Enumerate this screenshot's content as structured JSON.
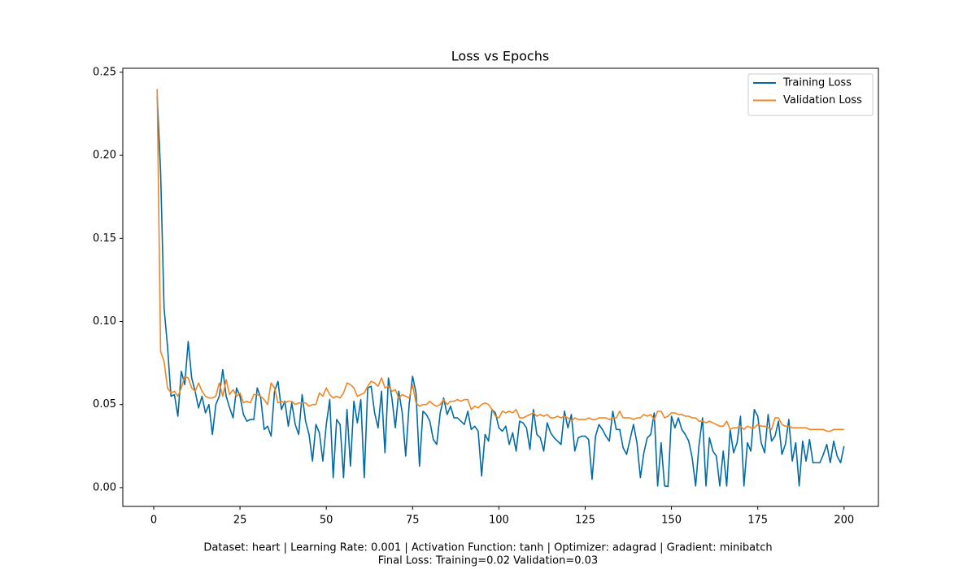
{
  "chart_data": {
    "type": "line",
    "title": "Loss vs Epochs",
    "footnote": [
      "Dataset: heart | Learning Rate: 0.001 | Activation Function: tanh | Optimizer: adagrad | Gradient: minibatch",
      "Final Loss: Training=0.02 Validation=0.03"
    ],
    "legend": "upper right",
    "grid": false,
    "x": [
      1,
      2,
      3,
      4,
      5,
      6,
      7,
      8,
      9,
      10,
      11,
      12,
      13,
      14,
      15,
      16,
      17,
      18,
      19,
      20,
      21,
      22,
      23,
      24,
      25,
      26,
      27,
      28,
      29,
      30,
      31,
      32,
      33,
      34,
      35,
      36,
      37,
      38,
      39,
      40,
      41,
      42,
      43,
      44,
      45,
      46,
      47,
      48,
      49,
      50,
      51,
      52,
      53,
      54,
      55,
      56,
      57,
      58,
      59,
      60,
      61,
      62,
      63,
      64,
      65,
      66,
      67,
      68,
      69,
      70,
      71,
      72,
      73,
      74,
      75,
      76,
      77,
      78,
      79,
      80,
      81,
      82,
      83,
      84,
      85,
      86,
      87,
      88,
      89,
      90,
      91,
      92,
      93,
      94,
      95,
      96,
      97,
      98,
      99,
      100,
      101,
      102,
      103,
      104,
      105,
      106,
      107,
      108,
      109,
      110,
      111,
      112,
      113,
      114,
      115,
      116,
      117,
      118,
      119,
      120,
      121,
      122,
      123,
      124,
      125,
      126,
      127,
      128,
      129,
      130,
      131,
      132,
      133,
      134,
      135,
      136,
      137,
      138,
      139,
      140,
      141,
      142,
      143,
      144,
      145,
      146,
      147,
      148,
      149,
      150,
      151,
      152,
      153,
      154,
      155,
      156,
      157,
      158,
      159,
      160,
      161,
      162,
      163,
      164,
      165,
      166,
      167,
      168,
      169,
      170,
      171,
      172,
      173,
      174,
      175,
      176,
      177,
      178,
      179,
      180,
      181,
      182,
      183,
      184,
      185,
      186,
      187,
      188,
      189,
      190,
      191,
      192,
      193,
      194,
      195,
      196,
      197,
      198,
      199,
      200
    ],
    "series": [
      {
        "name": "Training Loss",
        "color": "#006ba4",
        "values": [
          0.236,
          0.19,
          0.108,
          0.085,
          0.055,
          0.056,
          0.043,
          0.07,
          0.062,
          0.088,
          0.066,
          0.058,
          0.048,
          0.055,
          0.045,
          0.05,
          0.032,
          0.05,
          0.055,
          0.071,
          0.055,
          0.048,
          0.042,
          0.06,
          0.055,
          0.044,
          0.04,
          0.041,
          0.041,
          0.06,
          0.054,
          0.035,
          0.037,
          0.031,
          0.058,
          0.064,
          0.047,
          0.052,
          0.037,
          0.051,
          0.038,
          0.032,
          0.056,
          0.04,
          0.032,
          0.016,
          0.038,
          0.033,
          0.016,
          0.038,
          0.053,
          0.006,
          0.041,
          0.038,
          0.006,
          0.047,
          0.013,
          0.052,
          0.039,
          0.053,
          0.006,
          0.06,
          0.061,
          0.045,
          0.036,
          0.058,
          0.021,
          0.066,
          0.054,
          0.036,
          0.058,
          0.045,
          0.019,
          0.05,
          0.067,
          0.057,
          0.013,
          0.046,
          0.044,
          0.04,
          0.029,
          0.026,
          0.045,
          0.054,
          0.044,
          0.049,
          0.042,
          0.042,
          0.04,
          0.038,
          0.046,
          0.035,
          0.037,
          0.034,
          0.007,
          0.032,
          0.028,
          0.047,
          0.045,
          0.036,
          0.034,
          0.037,
          0.026,
          0.033,
          0.022,
          0.04,
          0.039,
          0.036,
          0.023,
          0.047,
          0.032,
          0.03,
          0.022,
          0.039,
          0.033,
          0.03,
          0.028,
          0.026,
          0.046,
          0.036,
          0.044,
          0.022,
          0.03,
          0.031,
          0.031,
          0.029,
          0.005,
          0.031,
          0.038,
          0.035,
          0.031,
          0.028,
          0.046,
          0.035,
          0.035,
          0.024,
          0.02,
          0.029,
          0.038,
          0.027,
          0.006,
          0.021,
          0.03,
          0.032,
          0.045,
          0.001,
          0.027,
          0.001,
          0.0007,
          0.043,
          0.036,
          0.042,
          0.035,
          0.032,
          0.028,
          0.018,
          0.001,
          0.026,
          0.042,
          0.001,
          0.03,
          0.022,
          0.019,
          0.001,
          0.022,
          0.001,
          0.035,
          0.021,
          0.027,
          0.043,
          0.001,
          0.027,
          0.022,
          0.047,
          0.043,
          0.027,
          0.021,
          0.044,
          0.028,
          0.031,
          0.04,
          0.02,
          0.026,
          0.041,
          0.016,
          0.027,
          0.001,
          0.028,
          0.016,
          0.029,
          0.015,
          0.015,
          0.015,
          0.02,
          0.026,
          0.015,
          0.028,
          0.019,
          0.015,
          0.025
        ]
      },
      {
        "name": "Validation Loss",
        "color": "#f28522",
        "values": [
          0.24,
          0.082,
          0.076,
          0.06,
          0.057,
          0.058,
          0.055,
          0.06,
          0.067,
          0.066,
          0.06,
          0.058,
          0.063,
          0.058,
          0.055,
          0.054,
          0.054,
          0.055,
          0.063,
          0.055,
          0.065,
          0.056,
          0.059,
          0.055,
          0.057,
          0.051,
          0.052,
          0.051,
          0.056,
          0.056,
          0.055,
          0.053,
          0.05,
          0.063,
          0.06,
          0.051,
          0.052,
          0.051,
          0.052,
          0.052,
          0.05,
          0.051,
          0.051,
          0.051,
          0.049,
          0.05,
          0.05,
          0.057,
          0.055,
          0.06,
          0.056,
          0.054,
          0.055,
          0.054,
          0.057,
          0.063,
          0.062,
          0.06,
          0.055,
          0.056,
          0.057,
          0.061,
          0.064,
          0.063,
          0.061,
          0.066,
          0.06,
          0.061,
          0.058,
          0.059,
          0.054,
          0.056,
          0.055,
          0.054,
          0.062,
          0.051,
          0.049,
          0.05,
          0.05,
          0.052,
          0.05,
          0.049,
          0.05,
          0.053,
          0.05,
          0.052,
          0.052,
          0.053,
          0.052,
          0.053,
          0.053,
          0.047,
          0.049,
          0.048,
          0.05,
          0.051,
          0.05,
          0.047,
          0.043,
          0.042,
          0.046,
          0.045,
          0.046,
          0.045,
          0.047,
          0.042,
          0.042,
          0.043,
          0.044,
          0.045,
          0.043,
          0.044,
          0.043,
          0.044,
          0.042,
          0.042,
          0.043,
          0.042,
          0.043,
          0.042,
          0.04,
          0.042,
          0.041,
          0.041,
          0.041,
          0.042,
          0.041,
          0.041,
          0.042,
          0.042,
          0.042,
          0.041,
          0.042,
          0.042,
          0.046,
          0.042,
          0.042,
          0.042,
          0.041,
          0.042,
          0.042,
          0.044,
          0.043,
          0.044,
          0.041,
          0.046,
          0.046,
          0.042,
          0.043,
          0.045,
          0.045,
          0.044,
          0.044,
          0.043,
          0.043,
          0.042,
          0.042,
          0.04,
          0.04,
          0.039,
          0.04,
          0.039,
          0.038,
          0.037,
          0.037,
          0.04,
          0.035,
          0.036,
          0.036,
          0.037,
          0.035,
          0.037,
          0.036,
          0.036,
          0.038,
          0.037,
          0.037,
          0.036,
          0.035,
          0.042,
          0.042,
          0.038,
          0.037,
          0.037,
          0.036,
          0.036,
          0.036,
          0.036,
          0.036,
          0.035,
          0.035,
          0.035,
          0.035,
          0.035,
          0.034,
          0.034,
          0.035,
          0.035,
          0.035,
          0.035
        ]
      }
    ],
    "xlim": [
      -8.95,
      209.95
    ],
    "xticks": [
      0,
      25,
      50,
      75,
      100,
      125,
      150,
      175,
      200
    ],
    "ylim": [
      -0.0113,
      0.2524
    ],
    "yticks": [
      {
        "value": 0,
        "label": "0.00"
      },
      {
        "value": 0.05,
        "label": "0.05"
      },
      {
        "value": 0.1,
        "label": "0.10"
      },
      {
        "value": 0.15,
        "label": "0.15"
      },
      {
        "value": 0.2,
        "label": "0.20"
      },
      {
        "value": 0.25,
        "label": "0.25"
      }
    ]
  }
}
